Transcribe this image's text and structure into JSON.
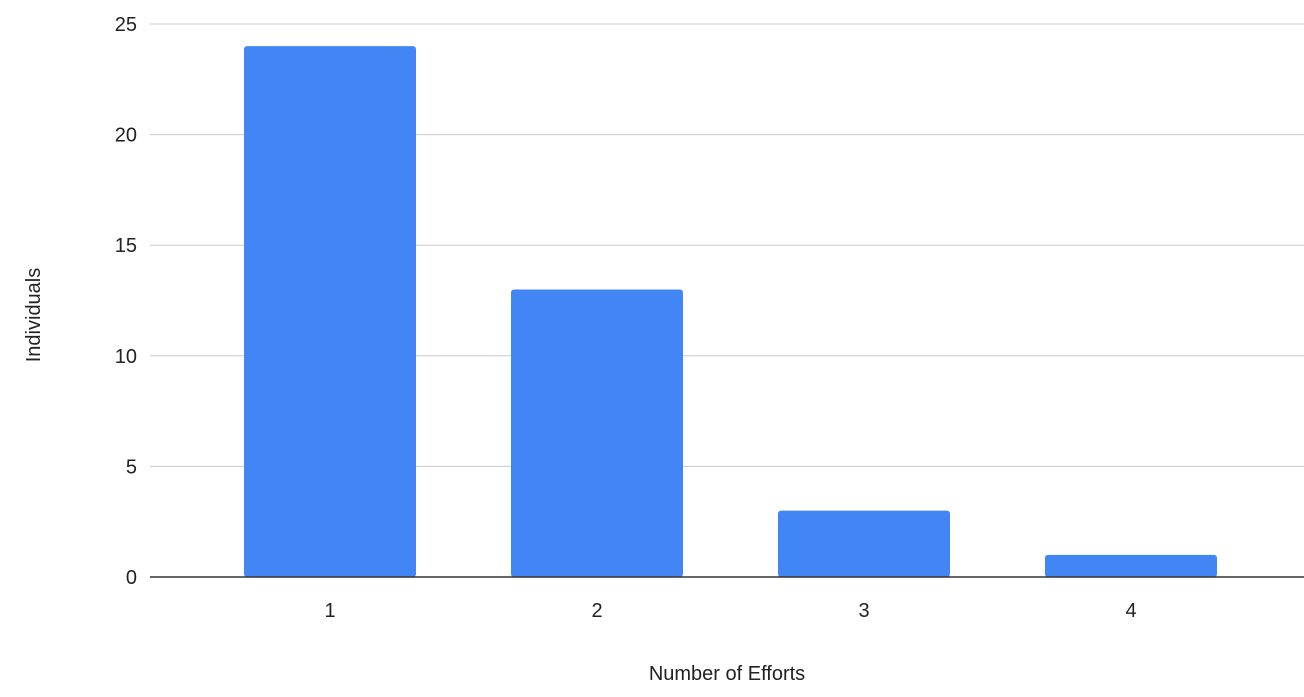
{
  "chart_data": {
    "type": "bar",
    "title": "",
    "xlabel": "Number of Efforts",
    "ylabel": "Individuals",
    "categories": [
      "1",
      "2",
      "3",
      "4"
    ],
    "values": [
      24,
      13,
      3,
      1
    ],
    "ylim": [
      0,
      25
    ],
    "yticks": [
      0,
      5,
      10,
      15,
      20,
      25
    ],
    "grid": true,
    "legend": "none",
    "bar_color": "#4285f4",
    "grid_color": "#cccccc",
    "axis_color": "#333333"
  }
}
